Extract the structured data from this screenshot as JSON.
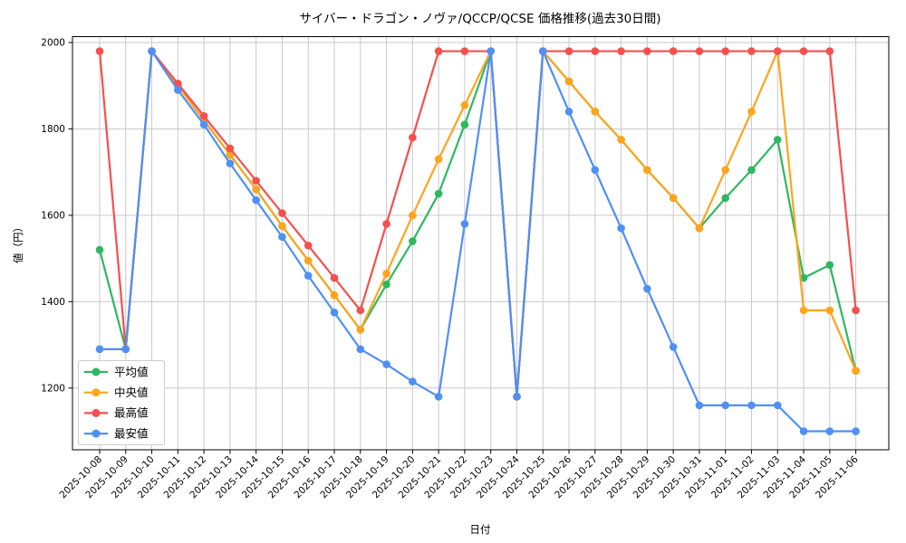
{
  "title": "サイバー・ドラゴン・ノヴァ/QCCP/QCSE 価格推移(過去30日間)",
  "colors": {
    "mean": "#2eb860",
    "median": "#ffa41c",
    "max": "#f4504e",
    "min": "#4e90f5",
    "grid": "#c9c9c9",
    "spine": "#000000",
    "background": "#ffffff",
    "legend_border": "#cccccc"
  },
  "chart_data": {
    "type": "line",
    "title": "サイバー・ドラゴン・ノヴァ/QCCP/QCSE 価格推移(過去30日間)",
    "xlabel": "日付",
    "ylabel": "値（円）",
    "grid": true,
    "legend_position": "lower left",
    "ylim": [
      1057,
      2014
    ],
    "yticks": [
      1200,
      1400,
      1600,
      1800,
      2000
    ],
    "x": [
      "2025-10-08",
      "2025-10-09",
      "2025-10-10",
      "2025-10-11",
      "2025-10-12",
      "2025-10-13",
      "2025-10-14",
      "2025-10-15",
      "2025-10-16",
      "2025-10-17",
      "2025-10-18",
      "2025-10-19",
      "2025-10-20",
      "2025-10-21",
      "2025-10-22",
      "2025-10-23",
      "2025-10-24",
      "2025-10-25",
      "2025-10-26",
      "2025-10-27",
      "2025-10-28",
      "2025-10-29",
      "2025-10-30",
      "2025-10-31",
      "2025-11-01",
      "2025-11-02",
      "2025-11-03",
      "2025-11-04",
      "2025-11-05",
      "2025-11-06"
    ],
    "series": [
      {
        "name": "平均値",
        "key": "mean",
        "color": "#2eb860",
        "values": [
          1520,
          1290,
          1980,
          1900,
          1820,
          1740,
          1660,
          1575,
          1495,
          1415,
          1335,
          1440,
          1540,
          1650,
          1810,
          1980,
          1180,
          1980,
          1910,
          1840,
          1775,
          1705,
          1640,
          1570,
          1640,
          1705,
          1775,
          1455,
          1485,
          1240
        ]
      },
      {
        "name": "中央値",
        "key": "median",
        "color": "#ffa41c",
        "values": [
          1290,
          1290,
          1980,
          1900,
          1820,
          1740,
          1660,
          1575,
          1495,
          1415,
          1335,
          1465,
          1600,
          1730,
          1855,
          1980,
          1180,
          1980,
          1910,
          1840,
          1775,
          1705,
          1640,
          1570,
          1705,
          1840,
          1980,
          1380,
          1380,
          1240
        ]
      },
      {
        "name": "最高値",
        "key": "max",
        "color": "#f4504e",
        "values": [
          1980,
          1290,
          1980,
          1905,
          1830,
          1755,
          1680,
          1605,
          1530,
          1455,
          1380,
          1580,
          1780,
          1980,
          1980,
          1980,
          1180,
          1980,
          1980,
          1980,
          1980,
          1980,
          1980,
          1980,
          1980,
          1980,
          1980,
          1980,
          1980,
          1380
        ]
      },
      {
        "name": "最安値",
        "key": "min",
        "color": "#4e90f5",
        "values": [
          1290,
          1290,
          1980,
          1890,
          1810,
          1720,
          1635,
          1550,
          1460,
          1375,
          1290,
          1255,
          1215,
          1180,
          1580,
          1980,
          1180,
          1980,
          1840,
          1705,
          1570,
          1430,
          1295,
          1160,
          1160,
          1160,
          1160,
          1100,
          1100,
          1100
        ]
      }
    ]
  }
}
